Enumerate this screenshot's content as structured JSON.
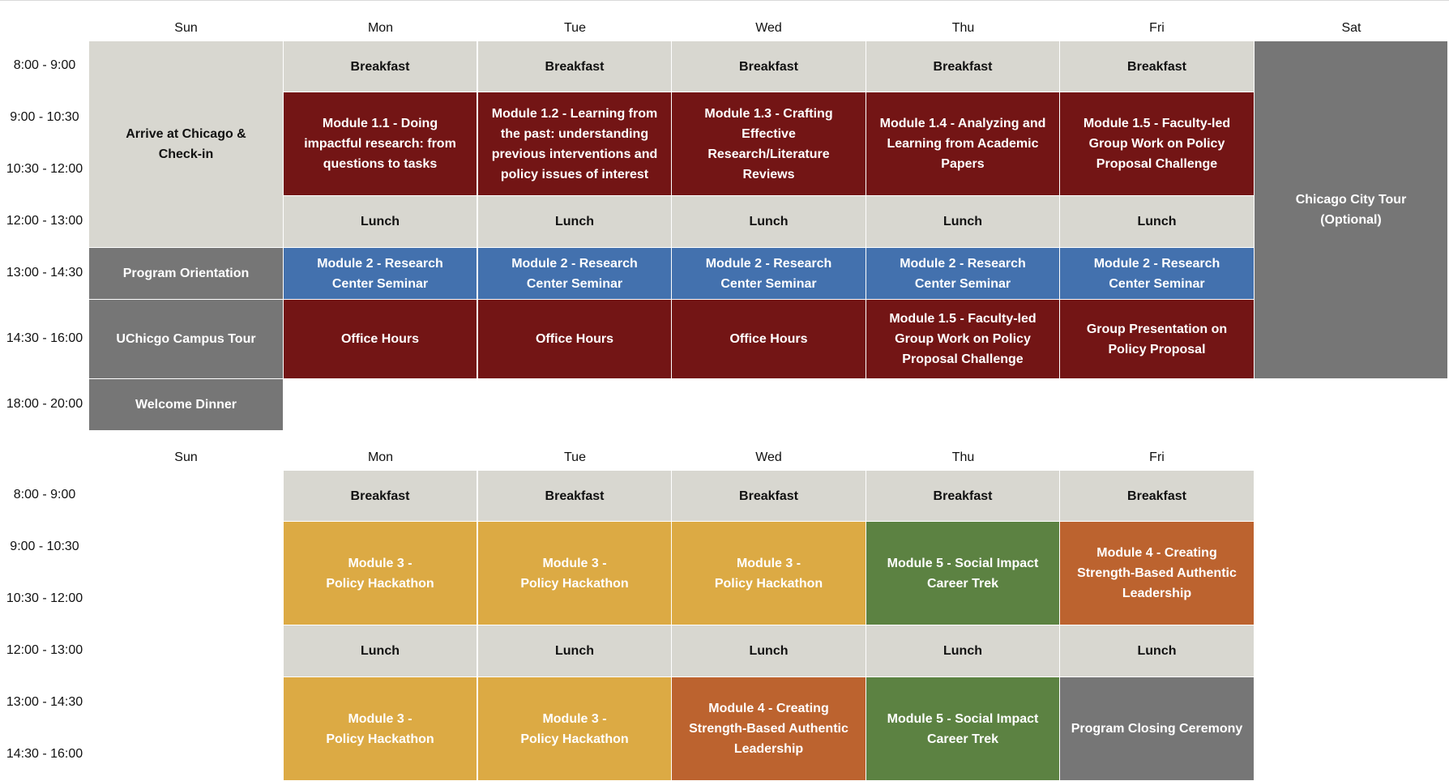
{
  "colors": {
    "meal": "#d8d7d0",
    "module_red": "#731515",
    "seminar_blue": "#4371ae",
    "event_gray": "#767676",
    "hackathon_yellow": "#dcaa44",
    "leadership_orange": "#bc632f",
    "career_green": "#5c8242"
  },
  "week1": {
    "days": [
      "Sun",
      "Mon",
      "Tue",
      "Wed",
      "Thu",
      "Fri",
      "Sat"
    ],
    "times": [
      "8:00 - 9:00",
      "9:00 - 10:30",
      "10:30 - 12:00",
      "12:00 - 13:00",
      "13:00 - 14:30",
      "14:30 - 16:00",
      "18:00 - 20:00"
    ],
    "sun": {
      "arrive": "Arrive at Chicago &\nCheck-in",
      "orientation": "Program Orientation",
      "tour": "UChicgo Campus Tour",
      "dinner": "Welcome Dinner"
    },
    "breakfast": "Breakfast",
    "lunch": "Lunch",
    "morning": [
      "Module 1.1 - Doing\nimpactful research: from\nquestions to tasks",
      "Module 1.2 - Learning from\nthe past: understanding\nprevious interventions and\npolicy issues of interest",
      "Module 1.3 - Crafting\nEffective\nResearch/Literature\nReviews",
      "Module 1.4 - Analyzing and\nLearning from Academic\nPapers",
      "Module 1.5 - Faculty-led\nGroup Work on Policy\nProposal Challenge"
    ],
    "seminar": "Module 2 - Research\nCenter Seminar",
    "afternoon": [
      "Office Hours",
      "Office Hours",
      "Office Hours",
      "Module 1.5 - Faculty-led\nGroup Work on Policy\nProposal Challenge",
      "Group Presentation on\nPolicy Proposal"
    ],
    "sat": "Chicago City Tour\n(Optional)"
  },
  "week2": {
    "days": [
      "Sun",
      "Mon",
      "Tue",
      "Wed",
      "Thu",
      "Fri"
    ],
    "times": [
      "8:00 - 9:00",
      "9:00 - 10:30",
      "10:30 - 12:00",
      "12:00 - 13:00",
      "13:00 - 14:30",
      "14:30 - 16:00"
    ],
    "breakfast": "Breakfast",
    "lunch": "Lunch",
    "morning": [
      "Module 3 -\nPolicy Hackathon",
      "Module 3 -\nPolicy Hackathon",
      "Module 3 -\nPolicy Hackathon",
      "Module 5 - Social Impact\nCareer Trek",
      "Module 4 - Creating\nStrength-Based Authentic\nLeadership"
    ],
    "afternoon": [
      "Module 3 -\nPolicy Hackathon",
      "Module 3 -\nPolicy Hackathon",
      "Module 4 - Creating\nStrength-Based Authentic\nLeadership",
      "Module 5 - Social Impact\nCareer Trek",
      "Program Closing Ceremony"
    ]
  }
}
